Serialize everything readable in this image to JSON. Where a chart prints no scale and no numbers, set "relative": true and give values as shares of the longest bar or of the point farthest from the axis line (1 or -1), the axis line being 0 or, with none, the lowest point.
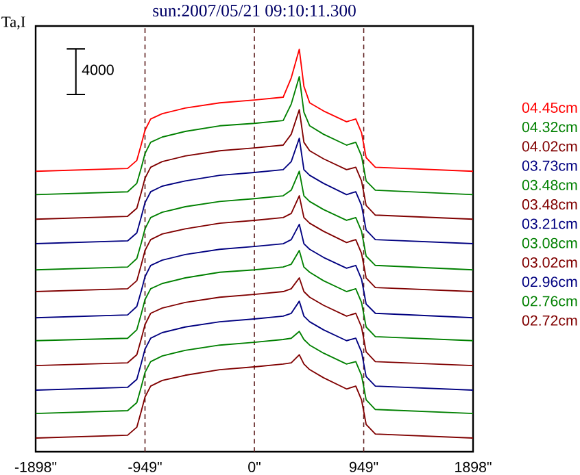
{
  "chart_data": {
    "type": "line",
    "title": "sun:2007/05/21 09:10:11.300",
    "ylabel": "Ta,I",
    "relative": true,
    "annotations": [
      "4000"
    ],
    "x": [
      -1898,
      -1100,
      -1020,
      -980,
      -949,
      -900,
      -800,
      -600,
      -300,
      0,
      250,
      320,
      390,
      430,
      480,
      600,
      800,
      880,
      930,
      970,
      1050,
      1898
    ],
    "xlim": [
      -1898,
      1898
    ],
    "xticks": [
      {
        "value": -1898,
        "label": "-1898\""
      },
      {
        "value": -949,
        "label": "-949\""
      },
      {
        "value": 0,
        "label": "0\""
      },
      {
        "value": 949,
        "label": "949\""
      },
      {
        "value": 1898,
        "label": "1898\""
      }
    ],
    "ref_lines": [
      {
        "axis": "x",
        "value": -949,
        "color": "#5a1a1a",
        "line_style": "dashed"
      },
      {
        "axis": "x",
        "value": 0,
        "color": "#5a1a1a",
        "line_style": "dashed"
      },
      {
        "axis": "x",
        "value": 949,
        "color": "#5a1a1a",
        "line_style": "dashed"
      }
    ],
    "legend": "right",
    "series": [
      {
        "name": "04.45cm",
        "color": "#ff0000",
        "values": [
          0.697,
          0.704,
          0.724,
          0.765,
          0.799,
          0.827,
          0.84,
          0.854,
          0.867,
          0.874,
          0.881,
          0.929,
          1.0,
          0.908,
          0.867,
          0.847,
          0.82,
          0.827,
          0.793,
          0.731,
          0.707,
          0.697
        ]
      },
      {
        "name": "04.32cm",
        "color": "#008000",
        "values": [
          0.639,
          0.646,
          0.667,
          0.707,
          0.741,
          0.769,
          0.782,
          0.796,
          0.81,
          0.816,
          0.823,
          0.864,
          0.932,
          0.844,
          0.81,
          0.789,
          0.762,
          0.769,
          0.735,
          0.673,
          0.65,
          0.639
        ]
      },
      {
        "name": "04.02cm",
        "color": "#800000",
        "values": [
          0.578,
          0.585,
          0.605,
          0.646,
          0.68,
          0.707,
          0.721,
          0.735,
          0.748,
          0.755,
          0.762,
          0.789,
          0.85,
          0.769,
          0.748,
          0.728,
          0.701,
          0.707,
          0.673,
          0.612,
          0.588,
          0.578
        ]
      },
      {
        "name": "03.73cm",
        "color": "#000080",
        "values": [
          0.517,
          0.524,
          0.544,
          0.585,
          0.619,
          0.646,
          0.66,
          0.673,
          0.687,
          0.694,
          0.701,
          0.721,
          0.779,
          0.701,
          0.687,
          0.667,
          0.639,
          0.646,
          0.612,
          0.551,
          0.527,
          0.517
        ]
      },
      {
        "name": "03.48cm",
        "color": "#008000",
        "values": [
          0.452,
          0.459,
          0.48,
          0.52,
          0.554,
          0.582,
          0.595,
          0.609,
          0.622,
          0.629,
          0.636,
          0.65,
          0.697,
          0.636,
          0.622,
          0.602,
          0.575,
          0.582,
          0.548,
          0.486,
          0.463,
          0.452
        ]
      },
      {
        "name": "03.48cm",
        "color": "#800000",
        "values": [
          0.398,
          0.405,
          0.425,
          0.466,
          0.5,
          0.527,
          0.541,
          0.554,
          0.568,
          0.575,
          0.582,
          0.592,
          0.636,
          0.582,
          0.568,
          0.548,
          0.52,
          0.527,
          0.493,
          0.432,
          0.408,
          0.398
        ]
      },
      {
        "name": "03.21cm",
        "color": "#000080",
        "values": [
          0.333,
          0.34,
          0.361,
          0.401,
          0.435,
          0.463,
          0.476,
          0.49,
          0.503,
          0.51,
          0.517,
          0.527,
          0.565,
          0.517,
          0.503,
          0.483,
          0.456,
          0.463,
          0.429,
          0.367,
          0.344,
          0.333
        ]
      },
      {
        "name": "03.08cm",
        "color": "#008000",
        "values": [
          0.276,
          0.282,
          0.303,
          0.344,
          0.378,
          0.405,
          0.418,
          0.432,
          0.446,
          0.452,
          0.459,
          0.466,
          0.5,
          0.459,
          0.446,
          0.425,
          0.398,
          0.405,
          0.371,
          0.31,
          0.286,
          0.276
        ]
      },
      {
        "name": "03.02cm",
        "color": "#800000",
        "values": [
          0.214,
          0.221,
          0.241,
          0.282,
          0.316,
          0.344,
          0.357,
          0.371,
          0.384,
          0.391,
          0.398,
          0.405,
          0.432,
          0.398,
          0.384,
          0.364,
          0.337,
          0.344,
          0.31,
          0.248,
          0.224,
          0.214
        ]
      },
      {
        "name": "02.96cm",
        "color": "#000080",
        "values": [
          0.153,
          0.16,
          0.18,
          0.221,
          0.255,
          0.282,
          0.296,
          0.31,
          0.323,
          0.33,
          0.337,
          0.344,
          0.374,
          0.337,
          0.323,
          0.303,
          0.276,
          0.282,
          0.248,
          0.187,
          0.163,
          0.153
        ]
      },
      {
        "name": "02.76cm",
        "color": "#008000",
        "values": [
          0.095,
          0.102,
          0.122,
          0.163,
          0.197,
          0.224,
          0.238,
          0.252,
          0.265,
          0.272,
          0.279,
          0.282,
          0.299,
          0.279,
          0.265,
          0.245,
          0.218,
          0.224,
          0.19,
          0.129,
          0.105,
          0.095
        ]
      },
      {
        "name": "02.72cm",
        "color": "#800000",
        "values": [
          0.034,
          0.041,
          0.061,
          0.102,
          0.136,
          0.163,
          0.177,
          0.19,
          0.204,
          0.211,
          0.218,
          0.221,
          0.241,
          0.218,
          0.204,
          0.184,
          0.156,
          0.163,
          0.129,
          0.068,
          0.044,
          0.034
        ]
      }
    ]
  }
}
